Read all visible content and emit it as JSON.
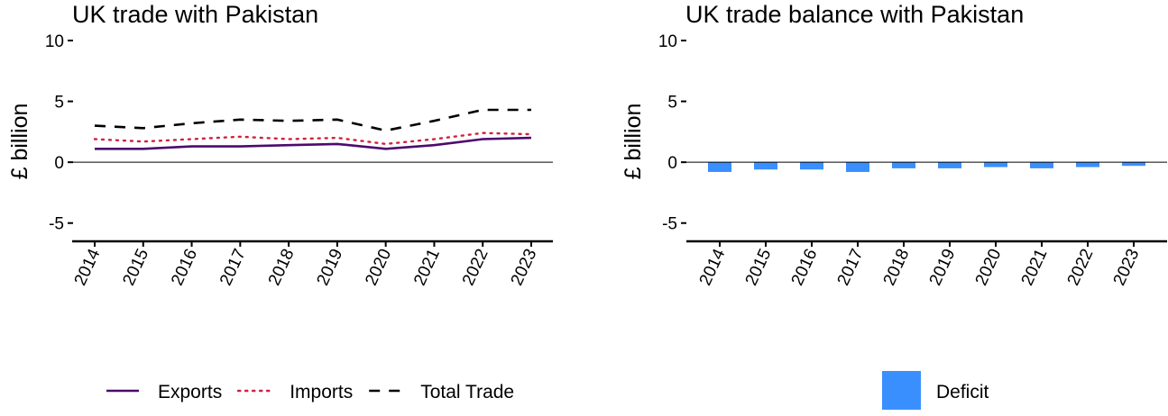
{
  "chart_data": [
    {
      "type": "line",
      "title": "UK trade with Pakistan",
      "ylabel": "£ billion",
      "xlabel": "",
      "categories": [
        "2014",
        "2015",
        "2016",
        "2017",
        "2018",
        "2019",
        "2020",
        "2021",
        "2022",
        "2023"
      ],
      "ylim": [
        -6.5,
        10
      ],
      "yticks": [
        -5,
        0,
        5,
        10
      ],
      "series": [
        {
          "name": "Exports",
          "values": [
            1.1,
            1.1,
            1.3,
            1.3,
            1.4,
            1.5,
            1.1,
            1.4,
            1.9,
            2.0
          ],
          "color": "#4b0a6e",
          "dash": "solid"
        },
        {
          "name": "Imports",
          "values": [
            1.9,
            1.7,
            1.9,
            2.1,
            1.9,
            2.0,
            1.5,
            1.9,
            2.4,
            2.3
          ],
          "color": "#d1203e",
          "dash": "dotted"
        },
        {
          "name": "Total Trade",
          "values": [
            3.0,
            2.8,
            3.2,
            3.5,
            3.4,
            3.5,
            2.6,
            3.4,
            4.3,
            4.3
          ],
          "color": "#000000",
          "dash": "dashed"
        }
      ],
      "legend_position": "bottom",
      "grid": false
    },
    {
      "type": "bar",
      "title": "UK trade balance with Pakistan",
      "ylabel": "£ billion",
      "xlabel": "",
      "categories": [
        "2014",
        "2015",
        "2016",
        "2017",
        "2018",
        "2019",
        "2020",
        "2021",
        "2022",
        "2023"
      ],
      "ylim": [
        -6.5,
        10
      ],
      "yticks": [
        -5,
        0,
        5,
        10
      ],
      "series": [
        {
          "name": "Deficit",
          "values": [
            -0.8,
            -0.6,
            -0.6,
            -0.8,
            -0.5,
            -0.5,
            -0.4,
            -0.5,
            -0.4,
            -0.3
          ],
          "color": "#3a8ffe"
        }
      ],
      "legend_position": "bottom",
      "grid": false
    }
  ]
}
